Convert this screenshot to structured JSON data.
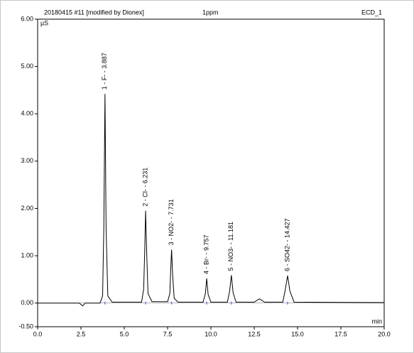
{
  "chart_data": {
    "type": "line",
    "title": "20180415 #11 [modified by Dionex]",
    "subtitle": "1ppm",
    "channel": "ECD_1",
    "ylabel": "µS",
    "xlabel": "min",
    "color": "#000000",
    "x": [
      0,
      2.4,
      2.6,
      2.75,
      3.6,
      3.75,
      3.82,
      3.887,
      3.95,
      4.05,
      4.3,
      6.0,
      6.12,
      6.18,
      6.231,
      6.29,
      6.37,
      6.6,
      7.5,
      7.63,
      7.68,
      7.731,
      7.79,
      7.88,
      8.1,
      9.55,
      9.68,
      9.757,
      9.84,
      10.0,
      10.95,
      11.08,
      11.181,
      11.28,
      11.45,
      12.5,
      12.8,
      13.1,
      14.15,
      14.3,
      14.427,
      14.56,
      14.8,
      20
    ],
    "values": [
      0,
      0,
      -0.06,
      0,
      0,
      0.15,
      1.6,
      4.42,
      1.6,
      0.15,
      0.02,
      0.02,
      0.3,
      1.1,
      1.95,
      1.1,
      0.2,
      0.03,
      0.03,
      0.2,
      0.7,
      1.13,
      0.6,
      0.1,
      0.02,
      0.02,
      0.2,
      0.52,
      0.18,
      0.02,
      0.02,
      0.25,
      0.59,
      0.22,
      0.02,
      0.02,
      0.09,
      0.02,
      0.02,
      0.3,
      0.58,
      0.25,
      0.02,
      0.01
    ],
    "annotations": [
      {
        "text": "1 - F- - 3.887",
        "x": 3.887
      },
      {
        "text": "2 - Cl- - 6.231",
        "x": 6.231
      },
      {
        "text": "3 - NO2- - 7.731",
        "x": 7.731
      },
      {
        "text": "4 - Br- - 9.757",
        "x": 9.757
      },
      {
        "text": "5 - NO3- - 11.181",
        "x": 11.181
      },
      {
        "text": "6 - SO42- - 14.427",
        "x": 14.427
      }
    ],
    "xlim": [
      0,
      20
    ],
    "xticks": [
      {
        "value": 0,
        "label": "0.0"
      },
      {
        "value": 2.5,
        "label": "2.5"
      },
      {
        "value": 5,
        "label": "5.0"
      },
      {
        "value": 7.5,
        "label": "7.5"
      },
      {
        "value": 10,
        "label": "10.0"
      },
      {
        "value": 12.5,
        "label": "12.5"
      },
      {
        "value": 15,
        "label": "15.0"
      },
      {
        "value": 17.5,
        "label": "17.5"
      },
      {
        "value": 20,
        "label": "20.0"
      }
    ],
    "ylim": [
      -0.5,
      6
    ],
    "yticks": [
      {
        "value": -0.5,
        "label": "-0.50"
      },
      {
        "value": 0,
        "label": "0.00"
      },
      {
        "value": 1,
        "label": "1.00"
      },
      {
        "value": 2,
        "label": "2.00"
      },
      {
        "value": 3,
        "label": "3.00"
      },
      {
        "value": 4,
        "label": "4.00"
      },
      {
        "value": 5,
        "label": "5.00"
      },
      {
        "value": 6,
        "label": "6.00"
      }
    ]
  }
}
